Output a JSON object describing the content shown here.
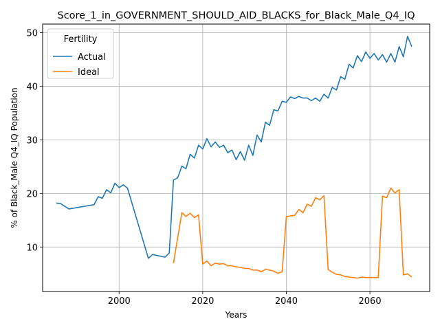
{
  "chart_data": {
    "type": "line",
    "title": "Score_1_in_GOVERNMENT_SHOULD_AID_BLACKS_for_Black_Male_Q4_IQ",
    "xlabel": "Years",
    "ylabel": "% of Black_Male Q4_IQ Population",
    "xlim": [
      1981.7,
      2074.3
    ],
    "ylim": [
      1.7,
      51.6
    ],
    "xticks": [
      2000,
      2020,
      2040,
      2060
    ],
    "yticks": [
      10,
      20,
      30,
      40,
      50
    ],
    "grid": true,
    "legend": {
      "title": "Fertility",
      "placement": "upper-left"
    },
    "series": [
      {
        "name": "Actual",
        "color": "#1f77b4",
        "x": [
          1985,
          1986,
          1988,
          1994,
          1995,
          1996,
          1997,
          1998,
          1999,
          2000,
          2001,
          2002,
          2007,
          2008,
          2011,
          2012,
          2013,
          2014,
          2015,
          2016,
          2017,
          2018,
          2019,
          2020,
          2021,
          2022,
          2023,
          2024,
          2025,
          2026,
          2027,
          2028,
          2029,
          2030,
          2031,
          2032,
          2033,
          2034,
          2035,
          2036,
          2037,
          2038,
          2039,
          2040,
          2041,
          2042,
          2043,
          2044,
          2045,
          2046,
          2047,
          2048,
          2049,
          2050,
          2051,
          2052,
          2053,
          2054,
          2055,
          2056,
          2057,
          2058,
          2059,
          2060,
          2061,
          2062,
          2063,
          2064,
          2065,
          2066,
          2067,
          2068,
          2069,
          2070
        ],
        "y": [
          18.2,
          18.1,
          17.1,
          17.9,
          19.4,
          19.1,
          20.7,
          20.1,
          21.9,
          21.1,
          21.6,
          21.0,
          7.9,
          8.6,
          8.1,
          8.9,
          22.5,
          22.9,
          25.1,
          24.6,
          27.3,
          26.6,
          29.0,
          28.3,
          30.2,
          28.7,
          29.6,
          28.6,
          29.0,
          27.6,
          28.1,
          26.3,
          27.8,
          26.2,
          29.0,
          27.1,
          30.9,
          29.6,
          33.3,
          32.7,
          35.6,
          35.4,
          37.2,
          37.0,
          38.0,
          37.7,
          38.1,
          37.8,
          37.8,
          37.3,
          37.8,
          37.2,
          38.5,
          37.8,
          39.8,
          39.3,
          41.8,
          41.3,
          44.1,
          43.4,
          45.7,
          44.6,
          46.4,
          45.2,
          46.1,
          44.9,
          45.9,
          44.5,
          46.1,
          44.5,
          47.4,
          45.5,
          49.3,
          47.4
        ]
      },
      {
        "name": "Ideal",
        "color": "#ff7f0e",
        "x": [
          2013,
          2015,
          2016,
          2017,
          2018,
          2019,
          2020,
          2021,
          2022,
          2023,
          2024,
          2025,
          2026,
          2027,
          2028,
          2029,
          2030,
          2031,
          2032,
          2033,
          2034,
          2035,
          2036,
          2037,
          2038,
          2039,
          2040,
          2041,
          2042,
          2043,
          2044,
          2045,
          2046,
          2047,
          2048,
          2049,
          2050,
          2051,
          2052,
          2053,
          2054,
          2055,
          2056,
          2057,
          2058,
          2059,
          2060,
          2061,
          2062,
          2063,
          2064,
          2065,
          2066,
          2067,
          2068,
          2069,
          2070
        ],
        "y": [
          7.0,
          16.4,
          15.7,
          16.3,
          15.5,
          16.0,
          6.8,
          7.4,
          6.5,
          7.0,
          6.8,
          6.9,
          6.5,
          6.5,
          6.3,
          6.2,
          6.0,
          6.0,
          5.7,
          5.7,
          5.4,
          5.8,
          5.7,
          5.5,
          5.1,
          5.4,
          15.7,
          15.8,
          15.9,
          17.0,
          16.4,
          18.0,
          17.6,
          19.2,
          18.8,
          19.6,
          5.8,
          5.3,
          4.9,
          4.8,
          4.5,
          4.4,
          4.3,
          4.2,
          4.4,
          4.3,
          4.3,
          4.3,
          4.3,
          19.5,
          19.2,
          21.0,
          20.1,
          20.7,
          4.8,
          5.0,
          4.4
        ]
      }
    ]
  }
}
